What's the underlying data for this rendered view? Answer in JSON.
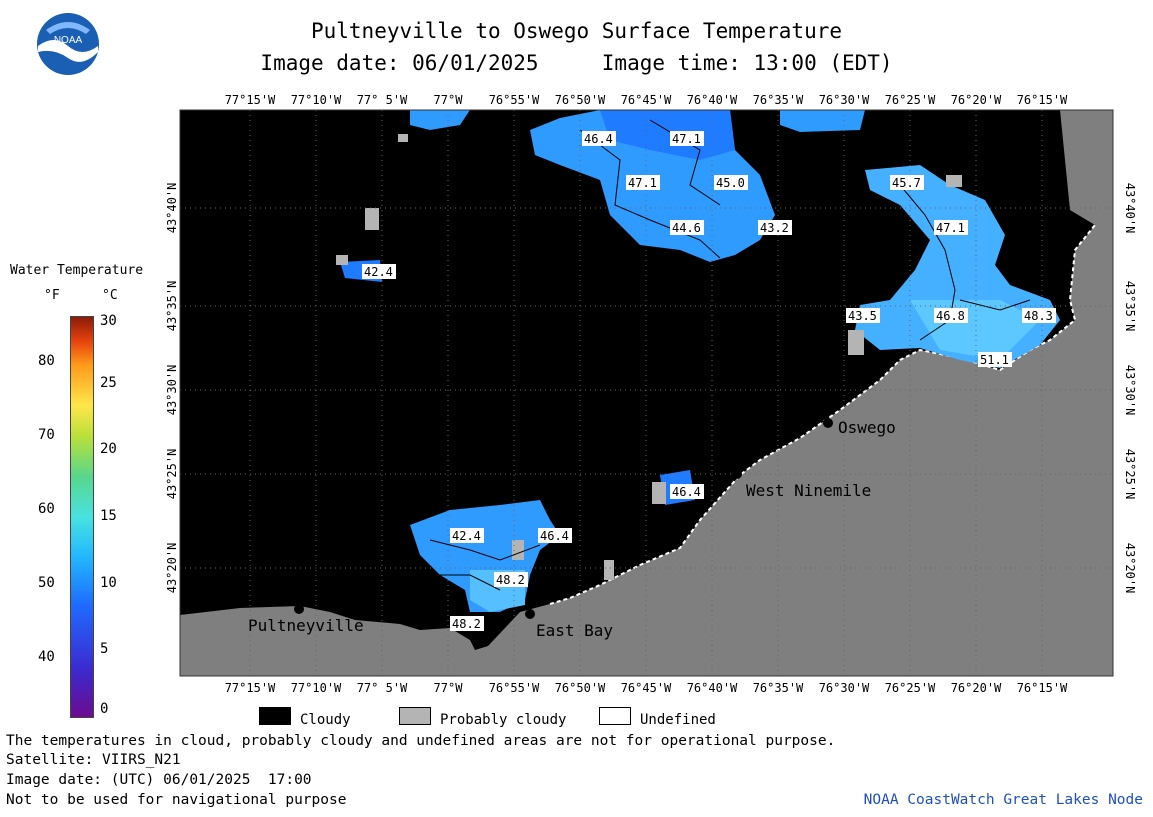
{
  "header": {
    "title": "Pultneyville to Oswego Surface Temperature",
    "image_date_line": "Image date: 06/01/2025     Image time: 13:00 (EDT)"
  },
  "legend": {
    "title": "Water Temperature",
    "unit_f": "°F",
    "unit_c": "°C",
    "f_ticks": [
      "80",
      "70",
      "60",
      "50",
      "40"
    ],
    "c_ticks": [
      "30",
      "25",
      "20",
      "15",
      "10",
      "5",
      "0"
    ]
  },
  "map": {
    "lon_labels": [
      "77°15'W",
      "77°10'W",
      "77° 5'W",
      "77°W",
      "76°55'W",
      "76°50'W",
      "76°45'W",
      "76°40'W",
      "76°35'W",
      "76°30'W",
      "76°25'W",
      "76°20'W",
      "76°15'W"
    ],
    "lat_labels": [
      "43°40'N",
      "43°35'N",
      "43°30'N",
      "43°25'N",
      "43°20'N"
    ],
    "places": [
      "Pultneyville",
      "East Bay",
      "West Ninemile",
      "Oswego"
    ],
    "temps": [
      "46.4",
      "47.1",
      "47.1",
      "45.0",
      "44.6",
      "43.2",
      "45.7",
      "47.1",
      "42.4",
      "43.5",
      "46.8",
      "48.3",
      "51.1",
      "46.4",
      "42.4",
      "46.4",
      "48.2",
      "48.2"
    ],
    "colors": {
      "water": "#000000",
      "land": "#7f7f7f",
      "cold": "#1f7bff",
      "mid": "#2f9bff",
      "warm": "#44b0ff",
      "probably_cloudy": "#b4b4b4"
    }
  },
  "cloud_legend": {
    "cloudy": "Cloudy",
    "probably_cloudy": "Probably cloudy",
    "undefined": "Undefined"
  },
  "footer": {
    "line1": "The temperatures in cloud, probably cloudy and undefined areas are not for operational purpose.",
    "line2": "Satellite: VIIRS_N21",
    "line3": "Image date: (UTC) 06/01/2025  17:00",
    "line4": "Not to be used for navigational purpose",
    "credit": "NOAA CoastWatch Great Lakes Node"
  },
  "logo": {
    "text": "NOAA"
  }
}
